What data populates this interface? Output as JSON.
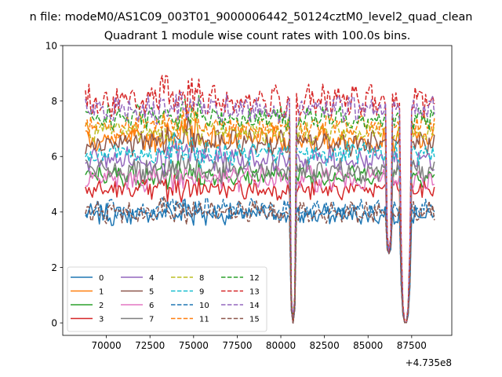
{
  "chart_data": {
    "type": "line",
    "suptitle": "n file: modeM0/AS1C09_003T01_9000006442_50124cztM0_level2_quad_clean",
    "title": "Quadrant 1 module wise count rates with 100.0s bins.",
    "xlabel": "",
    "ylabel": "",
    "x_offset_label": "+4.735e8",
    "xlim": [
      67500,
      89800
    ],
    "ylim": [
      -0.45,
      10
    ],
    "x_ticks": [
      70000,
      72500,
      75000,
      77500,
      80000,
      82500,
      85000,
      87500
    ],
    "x_tick_labels": [
      "70000",
      "72500",
      "75000",
      "77500",
      "80000",
      "82500",
      "85000",
      "87500"
    ],
    "y_ticks": [
      0,
      2,
      4,
      6,
      8,
      10
    ],
    "y_tick_labels": [
      "0",
      "2",
      "4",
      "6",
      "8",
      "10"
    ],
    "x_start": 68800,
    "x_step": 100,
    "n_points": 201,
    "dips": [
      {
        "start": 80500,
        "end": 80900,
        "min": 0.0
      },
      {
        "start": 86000,
        "end": 86400,
        "min": 2.5
      },
      {
        "start": 86800,
        "end": 87500,
        "min": 0.0
      }
    ],
    "legend_location": "lower left",
    "series": [
      {
        "name": "0",
        "color": "#1f77b4",
        "dash": "solid",
        "base": 3.9,
        "noise": 0.3
      },
      {
        "name": "1",
        "color": "#ff7f0e",
        "dash": "solid",
        "base": 6.6,
        "noise": 0.35
      },
      {
        "name": "2",
        "color": "#2ca02c",
        "dash": "solid",
        "base": 5.3,
        "noise": 0.3
      },
      {
        "name": "3",
        "color": "#d62728",
        "dash": "solid",
        "base": 4.8,
        "noise": 0.3
      },
      {
        "name": "4",
        "color": "#9467bd",
        "dash": "solid",
        "base": 5.9,
        "noise": 0.35
      },
      {
        "name": "5",
        "color": "#8c564b",
        "dash": "solid",
        "base": 6.5,
        "noise": 0.35
      },
      {
        "name": "6",
        "color": "#e377c2",
        "dash": "solid",
        "base": 5.2,
        "noise": 0.35
      },
      {
        "name": "7",
        "color": "#7f7f7f",
        "dash": "solid",
        "base": 5.5,
        "noise": 0.35
      },
      {
        "name": "8",
        "color": "#bcbd22",
        "dash": "dashed",
        "base": 6.9,
        "noise": 0.35
      },
      {
        "name": "9",
        "color": "#17becf",
        "dash": "dashed",
        "base": 6.1,
        "noise": 0.35
      },
      {
        "name": "10",
        "color": "#1f77b4",
        "dash": "dashed",
        "base": 4.1,
        "noise": 0.3
      },
      {
        "name": "11",
        "color": "#ff7f0e",
        "dash": "dashed",
        "base": 7.1,
        "noise": 0.35
      },
      {
        "name": "12",
        "color": "#2ca02c",
        "dash": "dashed",
        "base": 7.4,
        "noise": 0.35
      },
      {
        "name": "13",
        "color": "#d62728",
        "dash": "dashed",
        "base": 8.0,
        "noise": 0.45
      },
      {
        "name": "14",
        "color": "#9467bd",
        "dash": "dashed",
        "base": 7.7,
        "noise": 0.4
      },
      {
        "name": "15",
        "color": "#8c564b",
        "dash": "dashed",
        "base": 4.0,
        "noise": 0.3
      }
    ]
  }
}
